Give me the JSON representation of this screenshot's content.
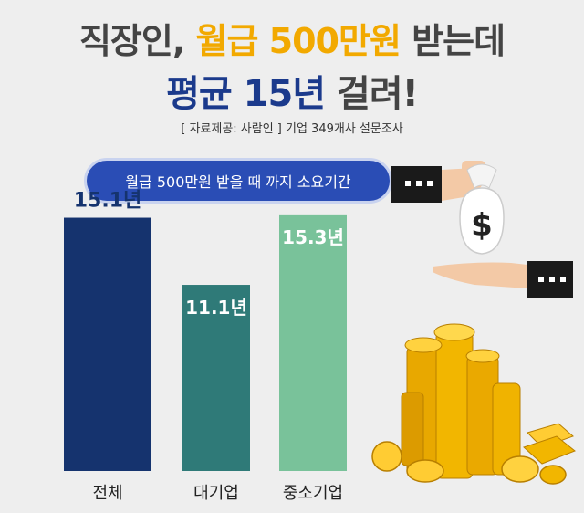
{
  "header": {
    "title_line1_a": "직장인,",
    "title_line1_b": "월급 500만원",
    "title_line1_c": "받는데",
    "title_line2_a": "평균 15년",
    "title_line2_b": "걸려!",
    "source": "[ 자료제공: 사람인 ] 기업 349개사 설문조사"
  },
  "pill_label": "월급 500만원 받을 때 까지 소요기간",
  "icons": [
    "money-bag-icon",
    "hand-icon",
    "gold-coins-icon"
  ],
  "chart_data": {
    "type": "bar",
    "title": "",
    "categories": [
      "전체",
      "대기업",
      "중소기업"
    ],
    "values": [
      15.1,
      11.1,
      15.3
    ],
    "value_labels": [
      "15.1년",
      "11.1년",
      "15.3년"
    ],
    "unit": "년",
    "ylim": [
      0,
      16
    ],
    "grid": false,
    "legend": "none",
    "colors": [
      "#15336e",
      "#2f7a78",
      "#79c29a"
    ],
    "label_colors": [
      "#15336e",
      "#ffffff",
      "#ffffff"
    ]
  }
}
